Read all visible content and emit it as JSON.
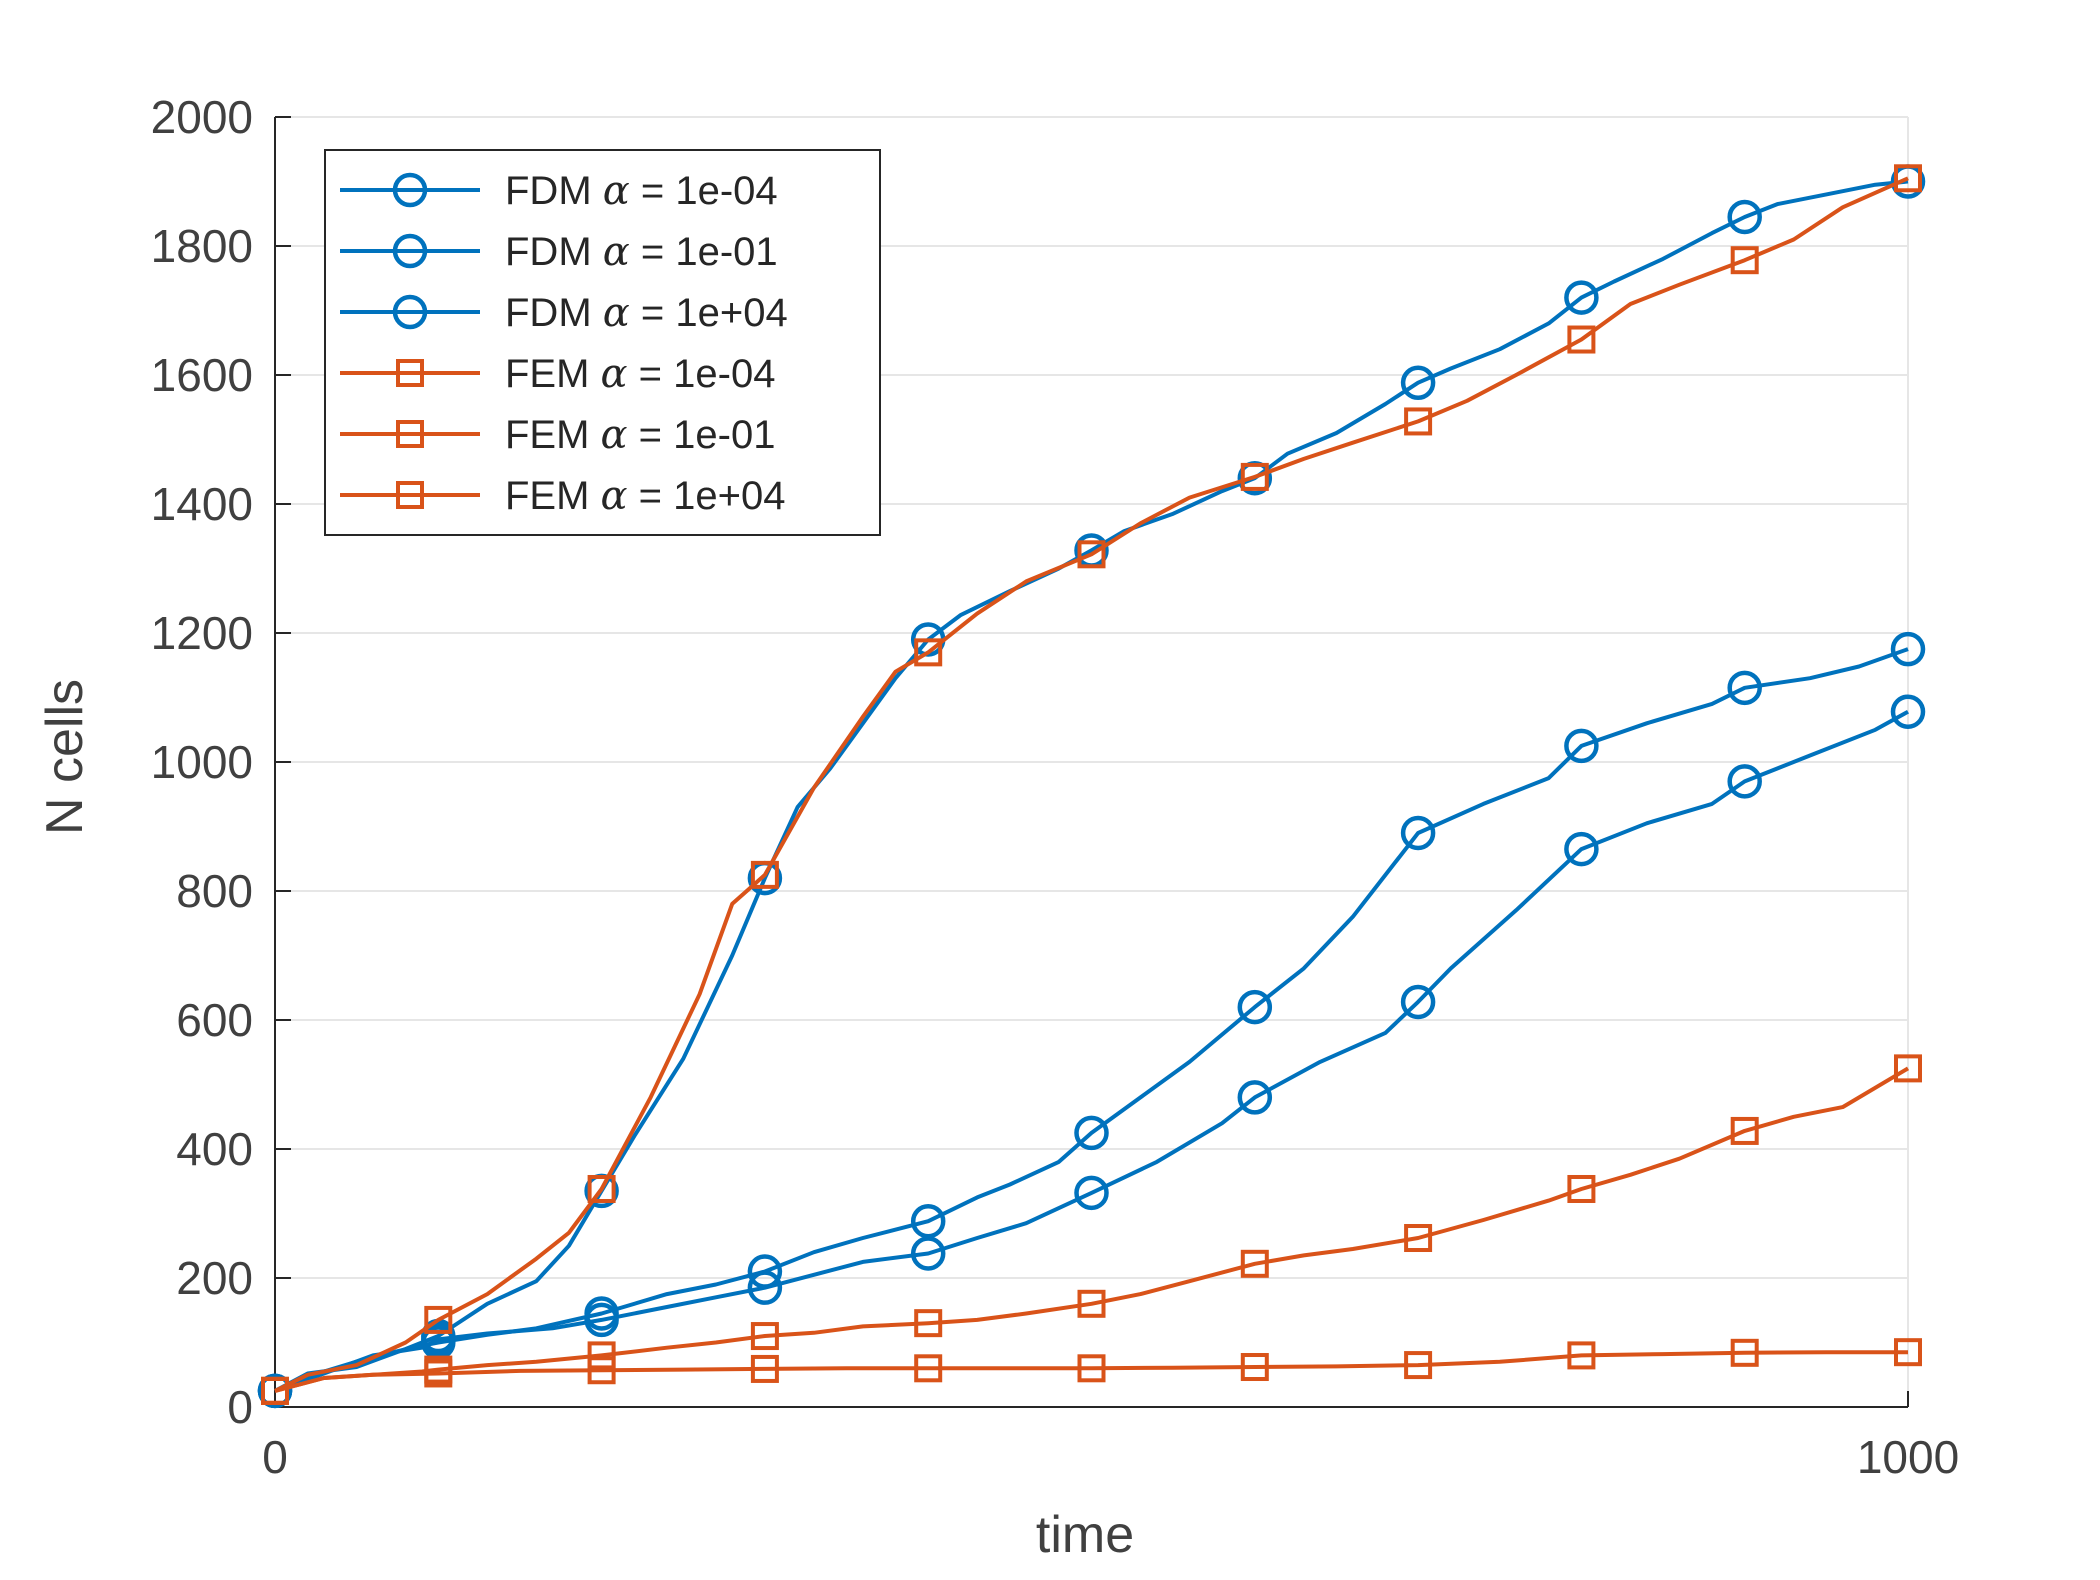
{
  "chart_data": {
    "type": "line",
    "xlabel": "time",
    "ylabel": "N cells",
    "xlim": [
      0,
      1000
    ],
    "ylim": [
      0,
      2000
    ],
    "xticks": [
      0,
      1000
    ],
    "yticks": [
      0,
      200,
      400,
      600,
      800,
      1000,
      1200,
      1400,
      1600,
      1800,
      2000
    ],
    "grid": true,
    "legend_position": "top-left",
    "series": [
      {
        "name": "FDM α = 1e-04",
        "color": "#0072BD",
        "marker": "circle",
        "x": [
          0,
          20,
          50,
          80,
          100,
          130,
          160,
          180,
          200,
          220,
          250,
          280,
          300,
          320,
          340,
          360,
          380,
          400,
          420,
          450,
          480,
          500,
          520,
          550,
          580,
          600,
          620,
          650,
          680,
          700,
          720,
          750,
          780,
          800,
          820,
          850,
          880,
          900,
          920,
          950,
          980,
          1000
        ],
        "y": [
          25,
          52,
          62,
          90,
          110,
          160,
          195,
          250,
          335,
          420,
          540,
          700,
          820,
          930,
          990,
          1060,
          1130,
          1190,
          1228,
          1265,
          1300,
          1328,
          1358,
          1385,
          1420,
          1440,
          1478,
          1510,
          1555,
          1588,
          1610,
          1640,
          1680,
          1720,
          1745,
          1780,
          1820,
          1845,
          1865,
          1880,
          1895,
          1900
        ]
      },
      {
        "name": "FDM α = 1e-01",
        "color": "#0072BD",
        "marker": "circle",
        "x": [
          0,
          30,
          60,
          90,
          100,
          130,
          160,
          200,
          240,
          270,
          300,
          330,
          360,
          400,
          430,
          450,
          480,
          500,
          530,
          560,
          600,
          630,
          660,
          700,
          740,
          780,
          800,
          840,
          880,
          900,
          940,
          970,
          1000
        ],
        "y": [
          25,
          55,
          78,
          95,
          100,
          112,
          122,
          145,
          175,
          190,
          210,
          240,
          262,
          288,
          325,
          345,
          380,
          425,
          480,
          535,
          620,
          680,
          760,
          890,
          935,
          975,
          1025,
          1060,
          1090,
          1115,
          1130,
          1148,
          1175
        ]
      },
      {
        "name": "FDM α = 1e+04",
        "color": "#0072BD",
        "marker": "circle",
        "x": [
          0,
          30,
          60,
          90,
          100,
          130,
          170,
          200,
          240,
          270,
          300,
          330,
          360,
          400,
          430,
          460,
          500,
          540,
          580,
          600,
          640,
          680,
          700,
          720,
          760,
          800,
          840,
          880,
          900,
          940,
          980,
          1000
        ],
        "y": [
          25,
          52,
          80,
          92,
          105,
          114,
          122,
          135,
          155,
          170,
          185,
          205,
          225,
          238,
          262,
          285,
          332,
          380,
          440,
          480,
          535,
          580,
          628,
          680,
          770,
          865,
          905,
          935,
          970,
          1010,
          1050,
          1078
        ]
      },
      {
        "name": "FEM α = 1e-04",
        "color": "#D95319",
        "marker": "square",
        "x": [
          0,
          20,
          50,
          80,
          100,
          130,
          160,
          180,
          200,
          230,
          260,
          280,
          300,
          330,
          360,
          380,
          400,
          430,
          460,
          500,
          530,
          560,
          600,
          630,
          660,
          700,
          730,
          760,
          800,
          830,
          860,
          900,
          930,
          960,
          1000
        ],
        "y": [
          25,
          50,
          65,
          100,
          135,
          175,
          230,
          270,
          338,
          480,
          640,
          780,
          825,
          960,
          1070,
          1140,
          1170,
          1230,
          1280,
          1322,
          1370,
          1410,
          1442,
          1470,
          1495,
          1528,
          1560,
          1600,
          1655,
          1710,
          1740,
          1778,
          1810,
          1860,
          1905
        ]
      },
      {
        "name": "FEM α = 1e-01",
        "color": "#D95319",
        "marker": "square",
        "x": [
          0,
          30,
          60,
          90,
          100,
          130,
          160,
          200,
          240,
          270,
          300,
          330,
          360,
          400,
          430,
          460,
          500,
          530,
          560,
          600,
          630,
          660,
          700,
          740,
          780,
          800,
          830,
          860,
          900,
          930,
          960,
          1000
        ],
        "y": [
          25,
          45,
          50,
          55,
          58,
          65,
          70,
          80,
          92,
          100,
          110,
          115,
          125,
          130,
          135,
          145,
          160,
          175,
          195,
          222,
          235,
          245,
          262,
          290,
          320,
          338,
          360,
          385,
          428,
          450,
          465,
          525
        ]
      },
      {
        "name": "FEM α = 1e+04",
        "color": "#D95319",
        "marker": "square",
        "x": [
          0,
          30,
          60,
          100,
          150,
          200,
          250,
          300,
          350,
          400,
          450,
          500,
          550,
          600,
          650,
          700,
          750,
          800,
          850,
          900,
          950,
          1000
        ],
        "y": [
          25,
          45,
          50,
          52,
          56,
          57,
          58,
          59,
          60,
          60,
          60,
          60,
          61,
          62,
          63,
          65,
          70,
          80,
          82,
          84,
          85,
          85
        ]
      }
    ]
  }
}
